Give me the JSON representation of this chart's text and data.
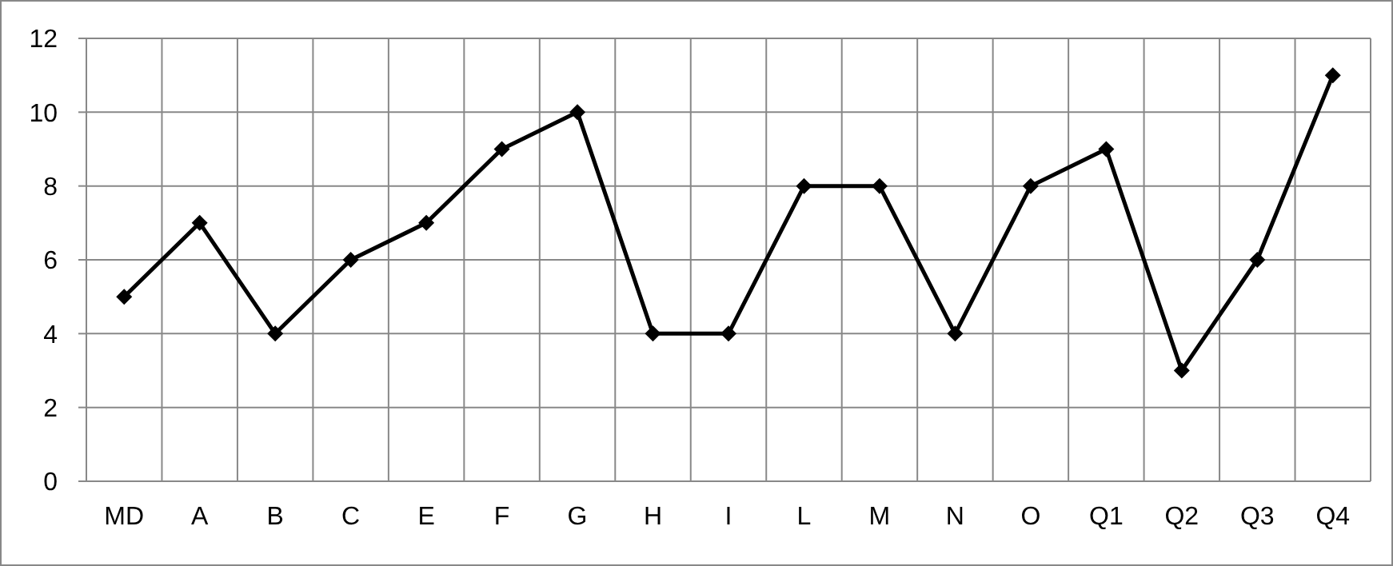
{
  "chart_data": {
    "type": "line",
    "categories": [
      "MD",
      "A",
      "B",
      "C",
      "E",
      "F",
      "G",
      "H",
      "I",
      "L",
      "M",
      "N",
      "O",
      "Q1",
      "Q2",
      "Q3",
      "Q4"
    ],
    "series": [
      {
        "color": "#000000",
        "values": [
          5,
          7,
          4,
          6,
          7,
          9,
          10,
          4,
          4,
          8,
          8,
          4,
          8,
          9,
          3,
          6,
          11
        ]
      }
    ],
    "ylim": [
      0,
      12
    ],
    "yticks": [
      0,
      2,
      4,
      6,
      8,
      10,
      12
    ],
    "grid": true,
    "marker": "diamond",
    "line_style": "solid"
  }
}
